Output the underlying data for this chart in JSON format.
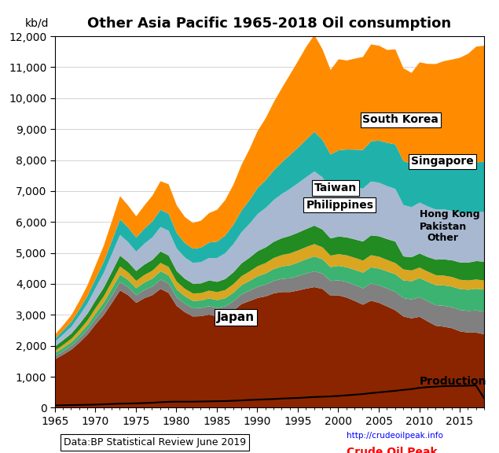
{
  "title": "Other Asia Pacific 1965-2018 Oil consumption",
  "ylabel": "kb/d",
  "years": [
    1965,
    1966,
    1967,
    1968,
    1969,
    1970,
    1971,
    1972,
    1973,
    1974,
    1975,
    1976,
    1977,
    1978,
    1979,
    1980,
    1981,
    1982,
    1983,
    1984,
    1985,
    1986,
    1987,
    1988,
    1989,
    1990,
    1991,
    1992,
    1993,
    1994,
    1995,
    1996,
    1997,
    1998,
    1999,
    2000,
    2001,
    2002,
    2003,
    2004,
    2005,
    2006,
    2007,
    2008,
    2009,
    2010,
    2011,
    2012,
    2013,
    2014,
    2015,
    2016,
    2017,
    2018
  ],
  "japan": [
    1580,
    1730,
    1890,
    2120,
    2380,
    2710,
    3010,
    3400,
    3800,
    3650,
    3400,
    3550,
    3650,
    3850,
    3720,
    3300,
    3100,
    2960,
    2970,
    3020,
    2960,
    3000,
    3150,
    3360,
    3460,
    3560,
    3610,
    3710,
    3750,
    3750,
    3800,
    3860,
    3910,
    3850,
    3630,
    3640,
    3570,
    3460,
    3340,
    3470,
    3400,
    3280,
    3160,
    2960,
    2900,
    2950,
    2800,
    2660,
    2630,
    2580,
    2480,
    2440,
    2440,
    2380
  ],
  "other": [
    100,
    110,
    120,
    140,
    160,
    185,
    210,
    240,
    270,
    255,
    245,
    265,
    280,
    300,
    300,
    280,
    270,
    265,
    265,
    275,
    275,
    285,
    300,
    315,
    335,
    360,
    380,
    405,
    425,
    445,
    465,
    490,
    510,
    495,
    475,
    490,
    505,
    515,
    530,
    555,
    565,
    580,
    595,
    595,
    610,
    635,
    650,
    665,
    675,
    680,
    690,
    700,
    715,
    730
  ],
  "pakistan": [
    100,
    110,
    120,
    135,
    150,
    170,
    195,
    220,
    245,
    235,
    230,
    240,
    255,
    270,
    270,
    255,
    245,
    240,
    240,
    250,
    255,
    265,
    280,
    295,
    315,
    340,
    360,
    380,
    400,
    420,
    440,
    460,
    480,
    465,
    450,
    465,
    475,
    490,
    505,
    525,
    540,
    555,
    570,
    570,
    590,
    615,
    630,
    645,
    660,
    665,
    675,
    685,
    700,
    715
  ],
  "hong_kong": [
    80,
    95,
    110,
    130,
    150,
    175,
    200,
    230,
    260,
    245,
    235,
    245,
    255,
    270,
    270,
    250,
    240,
    240,
    240,
    250,
    255,
    265,
    275,
    290,
    305,
    325,
    340,
    355,
    370,
    385,
    390,
    395,
    400,
    385,
    370,
    380,
    385,
    390,
    390,
    390,
    385,
    370,
    360,
    355,
    345,
    340,
    330,
    325,
    315,
    310,
    300,
    300,
    300,
    295
  ],
  "philippines": [
    140,
    155,
    170,
    195,
    220,
    250,
    280,
    315,
    350,
    330,
    320,
    335,
    350,
    370,
    370,
    340,
    325,
    315,
    315,
    330,
    335,
    355,
    380,
    415,
    445,
    485,
    505,
    525,
    545,
    565,
    575,
    580,
    595,
    575,
    555,
    570,
    580,
    595,
    615,
    640,
    660,
    675,
    695,
    420,
    430,
    455,
    470,
    500,
    525,
    540,
    560,
    575,
    595,
    610
  ],
  "taiwan": [
    150,
    185,
    220,
    275,
    330,
    400,
    480,
    575,
    670,
    645,
    625,
    675,
    725,
    790,
    800,
    730,
    685,
    670,
    685,
    725,
    770,
    835,
    910,
    1005,
    1095,
    1200,
    1275,
    1350,
    1430,
    1520,
    1600,
    1675,
    1750,
    1685,
    1590,
    1620,
    1650,
    1680,
    1710,
    1740,
    1730,
    1710,
    1700,
    1660,
    1615,
    1645,
    1635,
    1620,
    1610,
    1600,
    1590,
    1580,
    1590,
    1600
  ],
  "singapore": [
    100,
    130,
    160,
    200,
    245,
    300,
    360,
    430,
    500,
    475,
    455,
    485,
    520,
    555,
    550,
    505,
    470,
    460,
    470,
    500,
    530,
    575,
    630,
    700,
    770,
    845,
    900,
    960,
    1025,
    1095,
    1150,
    1215,
    1280,
    1210,
    1125,
    1165,
    1190,
    1220,
    1250,
    1300,
    1360,
    1400,
    1440,
    1420,
    1405,
    1450,
    1465,
    1490,
    1520,
    1540,
    1555,
    1570,
    1600,
    1630
  ],
  "south_korea": [
    130,
    170,
    215,
    275,
    345,
    430,
    520,
    635,
    750,
    710,
    685,
    750,
    830,
    925,
    950,
    890,
    840,
    830,
    870,
    950,
    1030,
    1145,
    1290,
    1475,
    1645,
    1840,
    2000,
    2205,
    2400,
    2600,
    2800,
    3000,
    3130,
    2930,
    2730,
    2940,
    2875,
    2940,
    3005,
    3130,
    3065,
    3000,
    3070,
    3000,
    2935,
    3080,
    3140,
    3210,
    3275,
    3345,
    3470,
    3600,
    3740,
    3745
  ],
  "production": [
    75,
    80,
    85,
    90,
    95,
    100,
    110,
    120,
    130,
    135,
    140,
    150,
    160,
    175,
    190,
    195,
    195,
    195,
    200,
    205,
    210,
    215,
    225,
    235,
    250,
    260,
    270,
    280,
    295,
    305,
    315,
    330,
    345,
    355,
    365,
    380,
    400,
    420,
    440,
    470,
    495,
    520,
    545,
    575,
    600,
    640,
    665,
    680,
    695,
    700,
    705,
    710,
    720,
    310
  ],
  "colors": {
    "japan": "#8B2500",
    "other": "#808080",
    "pakistan": "#3CB371",
    "hong_kong": "#DAA520",
    "philippines": "#228B22",
    "taiwan": "#A8B8D0",
    "singapore": "#20B2AA",
    "south_korea": "#FF8C00"
  },
  "production_color": "#000000",
  "ylim": [
    0,
    12000
  ],
  "yticks": [
    0,
    1000,
    2000,
    3000,
    4000,
    5000,
    6000,
    7000,
    8000,
    9000,
    10000,
    11000,
    12000
  ],
  "footer_text": "Data:BP Statistical Review June 2019",
  "url_text": "http://crudeoilpeak.info",
  "logo_text": "Crude Oil Peak"
}
